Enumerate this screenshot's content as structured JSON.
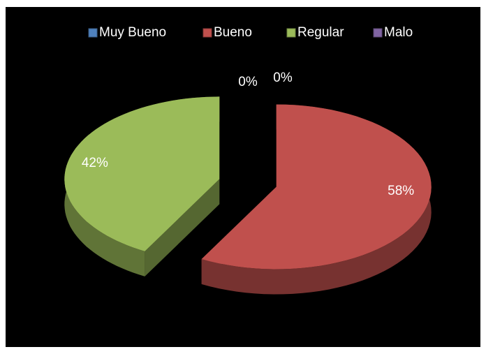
{
  "chart_data": {
    "type": "pie",
    "categories": [
      "Muy Bueno",
      "Bueno",
      "Regular",
      "Malo"
    ],
    "values": [
      0,
      58,
      42,
      0
    ],
    "value_labels": [
      "0%",
      "58%",
      "42%",
      "0%"
    ],
    "colors": [
      "#4f81bd",
      "#c0504d",
      "#9bbb59",
      "#8064a2"
    ],
    "legend": "top"
  }
}
